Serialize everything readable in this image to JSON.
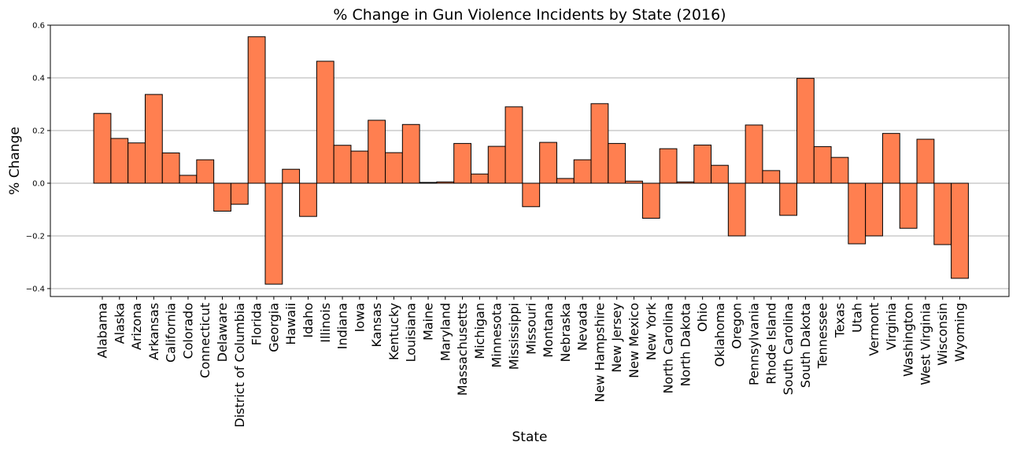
{
  "chart_data": {
    "type": "bar",
    "title": "% Change in Gun Violence Incidents by State (2016)",
    "xlabel": "State",
    "ylabel": "% Change",
    "ylim": [
      -0.43,
      0.6
    ],
    "yticks": [
      -0.4,
      -0.2,
      0.0,
      0.2,
      0.4,
      0.6
    ],
    "ytick_labels": [
      "−0.4",
      "−0.2",
      "0.0",
      "0.2",
      "0.4",
      "0.6"
    ],
    "grid": "horizontal",
    "bar_color": "#FF7F50",
    "edge_color": "#000000",
    "categories": [
      "Alabama",
      "Alaska",
      "Arizona",
      "Arkansas",
      "California",
      "Colorado",
      "Connecticut",
      "Delaware",
      "District of Columbia",
      "Florida",
      "Georgia",
      "Hawaii",
      "Idaho",
      "Illinois",
      "Indiana",
      "Iowa",
      "Kansas",
      "Kentucky",
      "Louisiana",
      "Maine",
      "Maryland",
      "Massachusetts",
      "Michigan",
      "Minnesota",
      "Mississippi",
      "Missouri",
      "Montana",
      "Nebraska",
      "Nevada",
      "New Hampshire",
      "New Jersey",
      "New Mexico",
      "New York",
      "North Carolina",
      "North Dakota",
      "Ohio",
      "Oklahoma",
      "Oregon",
      "Pennsylvania",
      "Rhode Island",
      "South Carolina",
      "South Dakota",
      "Tennessee",
      "Texas",
      "Utah",
      "Vermont",
      "Virginia",
      "Washington",
      "West Virginia",
      "Wisconsin",
      "Wyoming"
    ],
    "values": [
      0.265,
      0.17,
      0.153,
      0.337,
      0.115,
      0.03,
      0.089,
      -0.106,
      -0.08,
      0.556,
      -0.383,
      0.053,
      -0.126,
      0.463,
      0.144,
      0.122,
      0.239,
      0.116,
      0.223,
      0.003,
      0.005,
      0.151,
      0.035,
      0.14,
      0.29,
      -0.089,
      0.155,
      0.018,
      0.089,
      0.302,
      0.151,
      0.008,
      -0.133,
      0.131,
      0.005,
      0.145,
      0.068,
      -0.2,
      0.221,
      0.048,
      -0.122,
      0.398,
      0.139,
      0.098,
      -0.23,
      -0.2,
      0.189,
      -0.171,
      0.167,
      -0.233,
      -0.361
    ]
  }
}
